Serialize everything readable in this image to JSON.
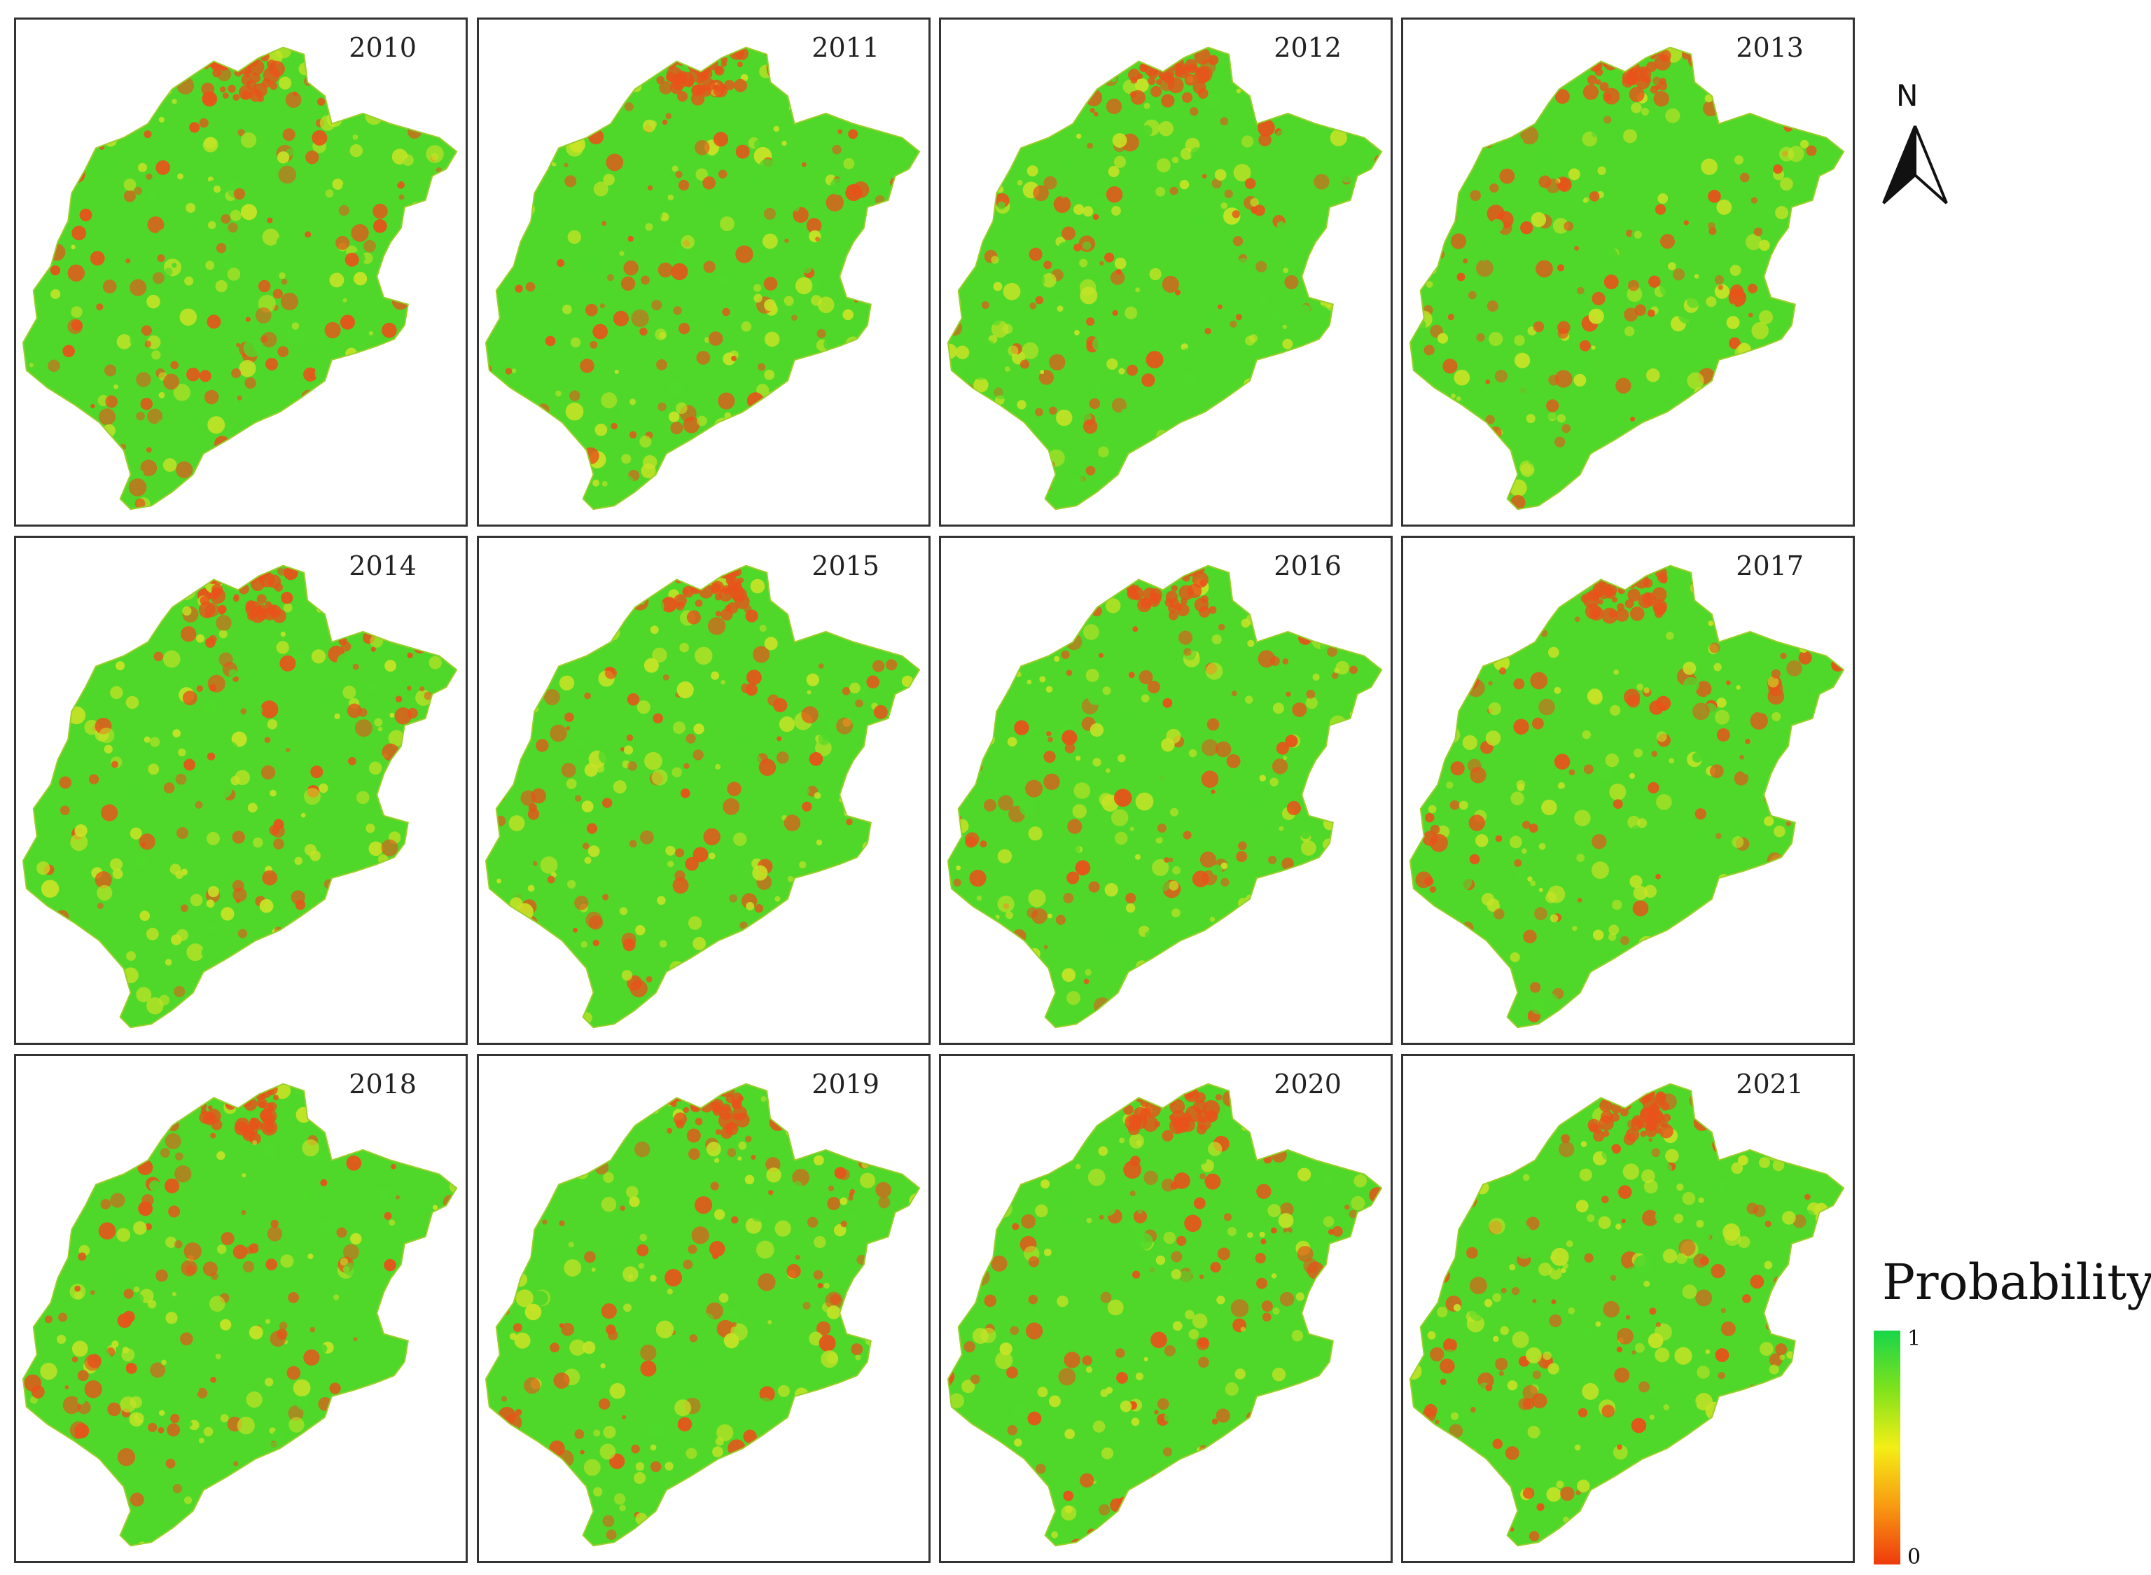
{
  "panels": [
    {
      "year": "2010"
    },
    {
      "year": "2011"
    },
    {
      "year": "2012"
    },
    {
      "year": "2013"
    },
    {
      "year": "2014"
    },
    {
      "year": "2015"
    },
    {
      "year": "2016"
    },
    {
      "year": "2017"
    },
    {
      "year": "2018"
    },
    {
      "year": "2019"
    },
    {
      "year": "2020"
    },
    {
      "year": "2021"
    }
  ],
  "north_arrow": {
    "letter": "N",
    "icon": "north-arrow-icon"
  },
  "legend": {
    "title": "Probability",
    "max_label": "1",
    "min_label": "0",
    "colors": [
      "#17d64a",
      "#7fe21c",
      "#f4ee16",
      "#f89a12",
      "#ee3a0c"
    ]
  },
  "colors": {
    "high": "#4fd82a",
    "mid": "#c8e326",
    "low": "#e8521a"
  }
}
